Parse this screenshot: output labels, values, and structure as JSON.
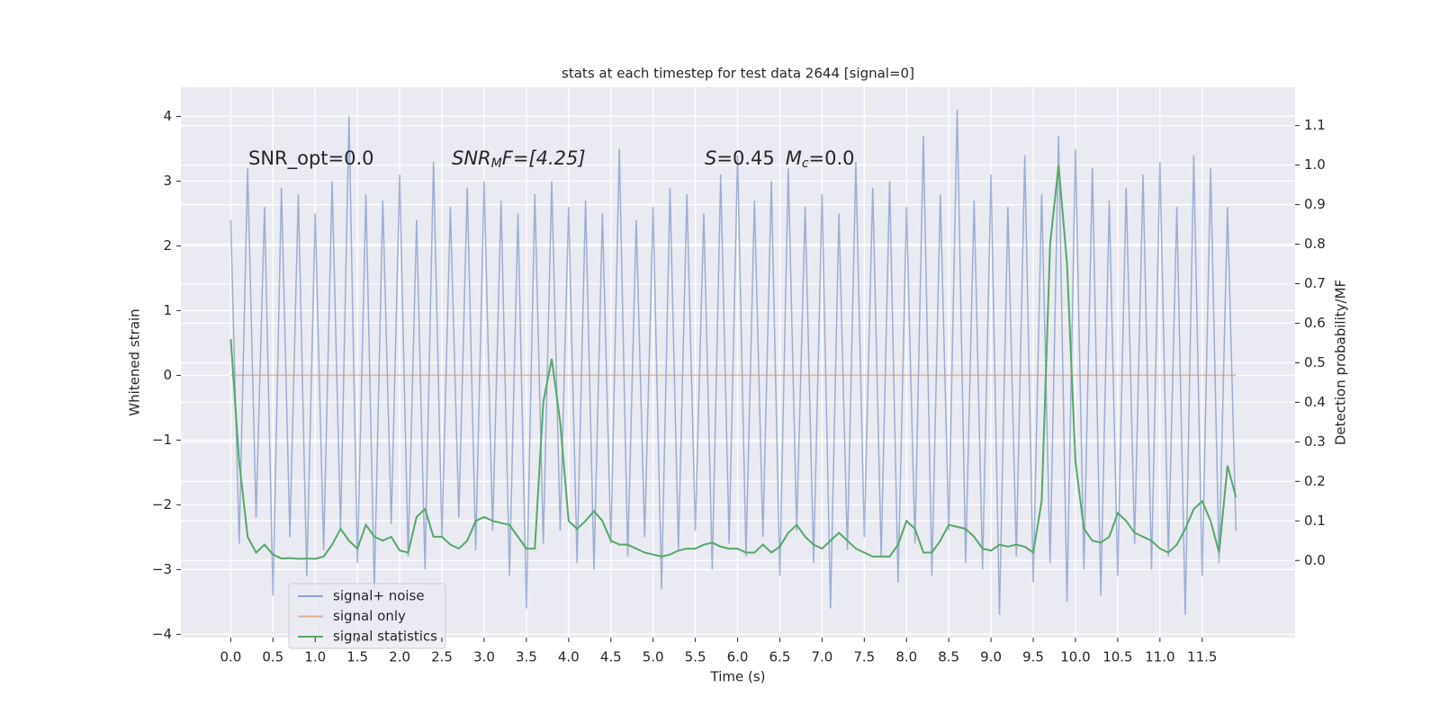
{
  "chart_data": {
    "type": "line",
    "title": "stats at each timestep for test data 2644 [signal=0]",
    "xlabel": "Time (s)",
    "ylabel": "Whitened strain",
    "y2label": "Detection probability/MF",
    "annotations": [
      [
        "SNR_opt=0.0"
      ],
      [
        "SNR",
        "M",
        "F=[4.25]"
      ],
      [
        "S",
        "=0.45",
        "M",
        "c",
        "=0.0"
      ]
    ],
    "grid": true,
    "legend": "lower left",
    "xlim": [
      -0.59,
      12.6
    ],
    "ylim": [
      -4.05,
      4.45
    ],
    "y2lim": [
      -0.195,
      1.197
    ],
    "xticks": [
      {
        "value": 0,
        "label": "0.0"
      },
      0.5,
      {
        "value": 1,
        "label": "1.0"
      },
      1.5,
      {
        "value": 2,
        "label": "2.0"
      },
      2.5,
      {
        "value": 3,
        "label": "3.0"
      },
      3.5,
      {
        "value": 4,
        "label": "4.0"
      },
      4.5,
      {
        "value": 5,
        "label": "5.0"
      },
      5.5,
      {
        "value": 6,
        "label": "6.0"
      },
      6.5,
      {
        "value": 7,
        "label": "7.0"
      },
      7.5,
      {
        "value": 8,
        "label": "8.0"
      },
      8.5,
      {
        "value": 9,
        "label": "9.0"
      },
      9.5,
      {
        "value": 10,
        "label": "10.0"
      },
      10.5,
      {
        "value": 11,
        "label": "11.0"
      },
      11.5
    ],
    "yticks": [
      {
        "value": -4,
        "label": "−4"
      },
      {
        "value": -3,
        "label": "−3"
      },
      {
        "value": -2,
        "label": "−2"
      },
      {
        "value": -1,
        "label": "−1"
      },
      0,
      1,
      2,
      3,
      4
    ],
    "y2ticks": [
      {
        "value": 0,
        "label": "0.0"
      },
      0.1,
      0.2,
      0.3,
      0.4,
      0.5,
      0.6,
      0.7,
      0.8,
      0.9,
      {
        "value": 1,
        "label": "1.0"
      },
      1.1
    ],
    "x": [
      0,
      0.1,
      0.2,
      0.3,
      0.4,
      0.5,
      0.6,
      0.7,
      0.8,
      0.9,
      1,
      1.1,
      1.2,
      1.3,
      1.4,
      1.5,
      1.6,
      1.7,
      1.8,
      1.9,
      2,
      2.1,
      2.2,
      2.3,
      2.4,
      2.5,
      2.6,
      2.7,
      2.8,
      2.9,
      3,
      3.1,
      3.2,
      3.3,
      3.4,
      3.5,
      3.6,
      3.7,
      3.8,
      3.9,
      4,
      4.1,
      4.2,
      4.3,
      4.4,
      4.5,
      4.6,
      4.7,
      4.8,
      4.9,
      5,
      5.1,
      5.2,
      5.3,
      5.4,
      5.5,
      5.6,
      5.7,
      5.8,
      5.9,
      6,
      6.1,
      6.2,
      6.3,
      6.4,
      6.5,
      6.6,
      6.7,
      6.8,
      6.9,
      7,
      7.1,
      7.2,
      7.3,
      7.4,
      7.5,
      7.6,
      7.7,
      7.8,
      7.9,
      8,
      8.1,
      8.2,
      8.3,
      8.4,
      8.5,
      8.6,
      8.7,
      8.8,
      8.9,
      9,
      9.1,
      9.2,
      9.3,
      9.4,
      9.5,
      9.6,
      9.7,
      9.8,
      9.9,
      10,
      10.1,
      10.2,
      10.3,
      10.4,
      10.5,
      10.6,
      10.7,
      10.8,
      10.9,
      11,
      11.1,
      11.2,
      11.3,
      11.4,
      11.5,
      11.6,
      11.7,
      11.8,
      11.9
    ],
    "series": [
      {
        "name": "signal+ noise",
        "color": "#4c72b0",
        "values": [
          2.4,
          -2.6,
          3.2,
          -2.2,
          2.6,
          -3.4,
          2.9,
          -2.5,
          2.8,
          -3.1,
          2.5,
          -2.7,
          3.0,
          -2.4,
          4.0,
          -2.9,
          2.8,
          -3.3,
          2.7,
          -2.3,
          3.1,
          -2.8,
          2.4,
          -3.0,
          3.3,
          -2.5,
          2.6,
          -2.2,
          2.9,
          -2.7,
          3.0,
          -2.4,
          2.7,
          -3.1,
          2.5,
          -3.6,
          2.8,
          -2.6,
          3.0,
          -2.4,
          2.6,
          -2.9,
          2.7,
          -3.0,
          2.5,
          -2.6,
          3.5,
          -2.8,
          2.4,
          -2.5,
          2.6,
          -3.3,
          2.9,
          -2.7,
          2.8,
          -2.4,
          2.5,
          -3.0,
          3.1,
          -2.6,
          3.4,
          -2.8,
          2.7,
          -2.5,
          3.0,
          -3.1,
          3.2,
          -2.4,
          2.6,
          -2.9,
          2.8,
          -3.6,
          2.5,
          -2.7,
          3.3,
          -2.5,
          2.9,
          -2.8,
          3.0,
          -3.2,
          2.6,
          -2.6,
          3.7,
          -3.1,
          2.8,
          -2.4,
          4.1,
          -2.9,
          2.7,
          -3.0,
          3.1,
          -3.7,
          2.6,
          -2.8,
          3.4,
          -3.2,
          2.8,
          -2.9,
          3.7,
          -3.5,
          3.5,
          -3.0,
          3.2,
          -3.4,
          2.7,
          -3.1,
          2.9,
          -2.6,
          3.1,
          -3.0,
          3.3,
          -2.8,
          2.6,
          -3.7,
          3.4,
          -3.1,
          3.2,
          -2.9,
          2.6,
          -2.4
        ]
      },
      {
        "name": "signal only",
        "color": "#dd8452",
        "x": [
          0,
          11.9
        ],
        "values": [
          0,
          0
        ]
      },
      {
        "name": "signal statistics",
        "color": "#55a868",
        "axis": "y2",
        "values": [
          0.56,
          0.25,
          0.06,
          0.02,
          0.04,
          0.015,
          0.005,
          0.006,
          0.004,
          0.005,
          0.004,
          0.01,
          0.04,
          0.08,
          0.05,
          0.03,
          0.09,
          0.06,
          0.05,
          0.06,
          0.025,
          0.02,
          0.11,
          0.13,
          0.06,
          0.06,
          0.04,
          0.03,
          0.05,
          0.1,
          0.11,
          0.1,
          0.095,
          0.09,
          0.06,
          0.03,
          0.03,
          0.4,
          0.51,
          0.35,
          0.1,
          0.08,
          0.1,
          0.125,
          0.1,
          0.05,
          0.04,
          0.04,
          0.03,
          0.02,
          0.015,
          0.01,
          0.015,
          0.025,
          0.03,
          0.03,
          0.04,
          0.045,
          0.035,
          0.03,
          0.03,
          0.02,
          0.02,
          0.04,
          0.02,
          0.035,
          0.07,
          0.09,
          0.06,
          0.04,
          0.03,
          0.05,
          0.07,
          0.05,
          0.03,
          0.02,
          0.01,
          0.01,
          0.01,
          0.04,
          0.1,
          0.08,
          0.02,
          0.02,
          0.05,
          0.09,
          0.085,
          0.08,
          0.06,
          0.03,
          0.025,
          0.04,
          0.035,
          0.04,
          0.035,
          0.02,
          0.15,
          0.8,
          1.0,
          0.75,
          0.25,
          0.08,
          0.05,
          0.045,
          0.06,
          0.12,
          0.1,
          0.07,
          0.06,
          0.05,
          0.03,
          0.02,
          0.04,
          0.08,
          0.13,
          0.15,
          0.1,
          0.02,
          0.24,
          0.16
        ]
      }
    ]
  }
}
